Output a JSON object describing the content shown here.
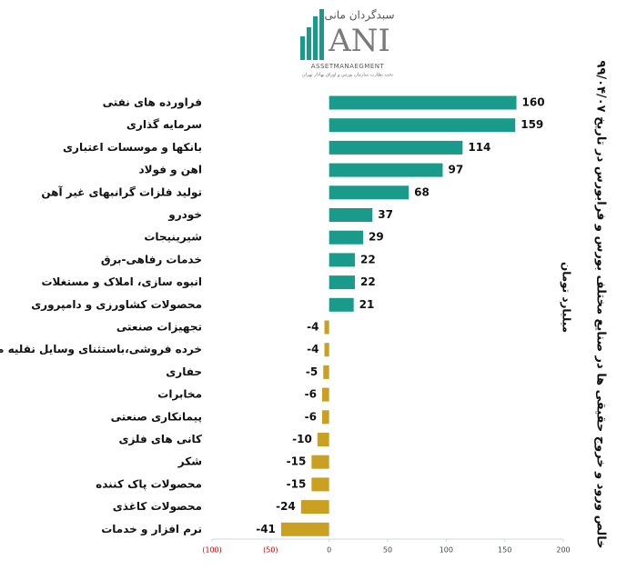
{
  "logo": {
    "brand_fa": "سبدگردان مانی",
    "brand": "ANI",
    "tagline": "ASSETMANAEGMENT",
    "note": "تحت نظارت سازمان بورس و اوراق بهادار تهران"
  },
  "chart_data": {
    "type": "hbar",
    "title": "خالص ورود و خروج حقیقی ها در صنایع مختلف بورس و فرابورس در تاریخ ۹۹/۰۴/۰۷",
    "y_label": "میلیارد تومان",
    "categories": [
      "فراورده های نفتی",
      "سرمایه گذاری",
      "بانکها و موسسات اعتباری",
      "اهن و فولاد",
      "تولید فلزات گرانبهای غیر آهن",
      "خودرو",
      "شیرینیجات",
      "خدمات رفاهی-برق",
      "انبوه سازی، املاک و مستغلات",
      "محصولات کشاورزی و دامپروری",
      "تجهیزات صنعتی",
      "خرده فروشی،باستثنای وسایل نقلیه موتوری",
      "حفاری",
      "مخابرات",
      "پیمانکاری صنعتی",
      "کانی های فلزی",
      "شکر",
      "محصولات پاک کننده",
      "محصولات کاغذی",
      "نرم افزار و خدمات"
    ],
    "values": [
      160,
      159,
      114,
      97,
      68,
      37,
      29,
      22,
      22,
      21,
      -4,
      -4,
      -5,
      -6,
      -6,
      -10,
      -15,
      -15,
      -24,
      -41
    ],
    "positive_color": "#1a9a8a",
    "negative_color": "#c9a020",
    "xlim": [
      -100,
      200
    ],
    "xticks": [
      {
        "value": -100,
        "label": "(100)"
      },
      {
        "value": -50,
        "label": "(50)"
      },
      0,
      50,
      100,
      150,
      200
    ]
  }
}
